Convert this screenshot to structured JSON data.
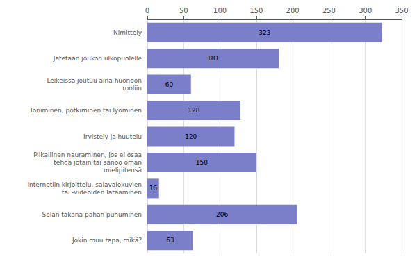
{
  "chart_data": {
    "type": "bar",
    "orientation": "horizontal",
    "categories": [
      "Nimittely",
      "Jätetään joukon ulkopuolelle",
      "Leikeissä joutuu aina huonoon\nrooliin",
      "Töniminen, potkiminen tai lyöminen",
      "Irvistely ja huutelu",
      "Pilkallinen nauraminen, jos ei osaa\ntehdä jotain tai sanoo oman\nmielipitensä",
      "Internetiin kirjoittelu, salavalokuvien\ntai -videoiden lataaminen",
      "Selän takana pahan puhuminen",
      "Jokin muu tapa, mikä?"
    ],
    "values": [
      323,
      181,
      60,
      128,
      120,
      150,
      16,
      206,
      63
    ],
    "color": "#7b7fca",
    "xlim": [
      0,
      350
    ],
    "xticks": [
      0,
      50,
      100,
      150,
      200,
      250,
      300,
      350
    ],
    "grid": true,
    "data_labels": true
  }
}
